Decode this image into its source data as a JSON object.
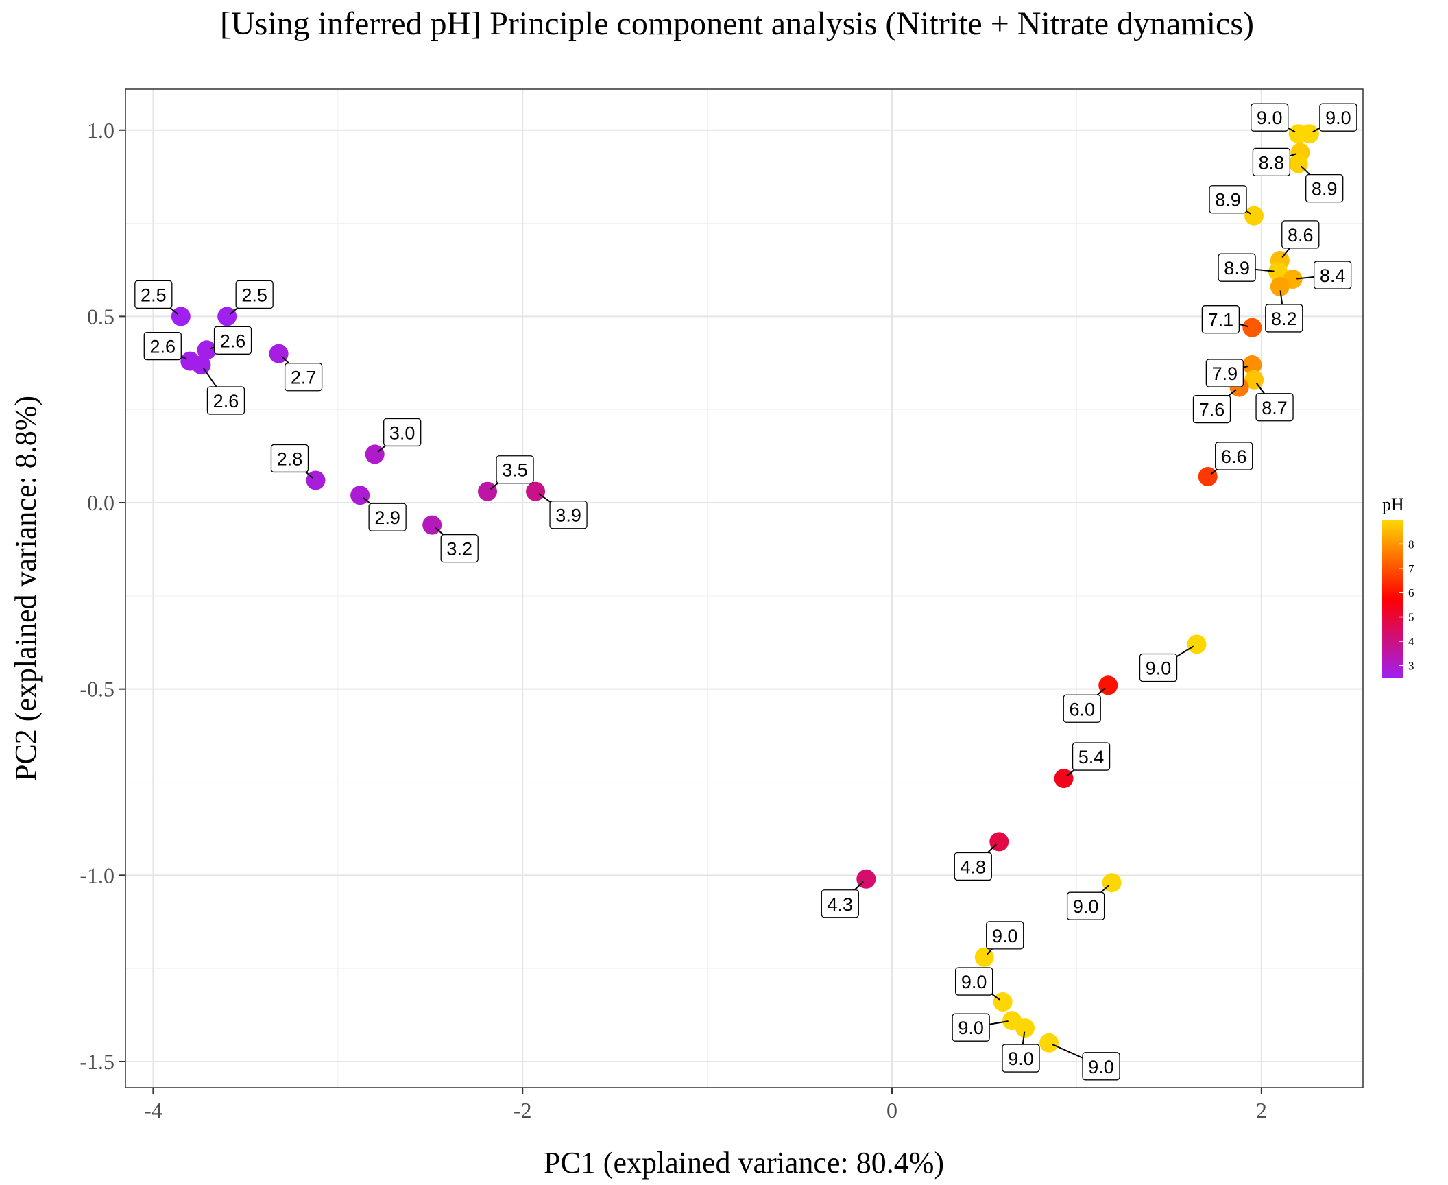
{
  "chart_data": {
    "type": "scatter",
    "title": "[Using inferred pH] Principle component analysis (Nitrite + Nitrate dynamics)",
    "xlabel": "PC1 (explained variance: 80.4%)",
    "ylabel": "PC2 (explained variance: 8.8%)",
    "xlim": [
      -4.15,
      2.55
    ],
    "ylim": [
      -1.57,
      1.11
    ],
    "x_ticks": [
      -4,
      -2,
      0,
      2
    ],
    "x_tick_labels": [
      "-4",
      "-2",
      "0",
      "2"
    ],
    "y_ticks": [
      1.0,
      0.5,
      0.0,
      -0.5,
      -1.0,
      -1.5
    ],
    "y_tick_labels": [
      "1.0",
      "0.5",
      "0.0",
      "-0.5",
      "-1.0",
      "-1.5"
    ],
    "grid": true,
    "legend": {
      "title": "pH",
      "placement": "right",
      "type": "colorbar",
      "range": [
        2.5,
        9.0
      ],
      "ticks": [
        3,
        4,
        5,
        6,
        7,
        8
      ],
      "tick_labels": [
        "3",
        "4",
        "5",
        "6",
        "7",
        "8"
      ],
      "colors": [
        "#a020f0",
        "#ff0000",
        "#ffd700"
      ]
    },
    "points": [
      {
        "x": 2.2,
        "y": 0.99,
        "ph": 9.0,
        "label": "9.0"
      },
      {
        "x": 2.26,
        "y": 0.99,
        "ph": 9.0,
        "label": "9.0"
      },
      {
        "x": 2.21,
        "y": 0.94,
        "ph": 8.8,
        "label": "8.8"
      },
      {
        "x": 2.2,
        "y": 0.91,
        "ph": 8.9,
        "label": "8.9"
      },
      {
        "x": 1.96,
        "y": 0.77,
        "ph": 8.9,
        "label": "8.9"
      },
      {
        "x": 2.1,
        "y": 0.65,
        "ph": 8.6,
        "label": "8.6"
      },
      {
        "x": 2.09,
        "y": 0.62,
        "ph": 8.9,
        "label": "8.9"
      },
      {
        "x": 2.17,
        "y": 0.6,
        "ph": 8.4,
        "label": "8.4"
      },
      {
        "x": 2.1,
        "y": 0.58,
        "ph": 8.2,
        "label": "8.2"
      },
      {
        "x": 1.95,
        "y": 0.47,
        "ph": 7.1,
        "label": "7.1"
      },
      {
        "x": 1.95,
        "y": 0.37,
        "ph": 7.9,
        "label": "7.9"
      },
      {
        "x": 1.96,
        "y": 0.33,
        "ph": 8.7,
        "label": "8.7"
      },
      {
        "x": 1.88,
        "y": 0.31,
        "ph": 7.6,
        "label": "7.6"
      },
      {
        "x": 1.71,
        "y": 0.07,
        "ph": 6.6,
        "label": "6.6"
      },
      {
        "x": 1.65,
        "y": -0.38,
        "ph": 9.0,
        "label": "9.0"
      },
      {
        "x": 1.17,
        "y": -0.49,
        "ph": 6.0,
        "label": "6.0"
      },
      {
        "x": 0.93,
        "y": -0.74,
        "ph": 5.4,
        "label": "5.4"
      },
      {
        "x": 0.58,
        "y": -0.91,
        "ph": 4.8,
        "label": "4.8"
      },
      {
        "x": -0.14,
        "y": -1.01,
        "ph": 4.3,
        "label": "4.3"
      },
      {
        "x": 1.19,
        "y": -1.02,
        "ph": 9.0,
        "label": "9.0"
      },
      {
        "x": 0.5,
        "y": -1.22,
        "ph": 9.0,
        "label": "9.0"
      },
      {
        "x": 0.6,
        "y": -1.34,
        "ph": 9.0,
        "label": "9.0"
      },
      {
        "x": 0.65,
        "y": -1.39,
        "ph": 9.0,
        "label": "9.0"
      },
      {
        "x": 0.72,
        "y": -1.41,
        "ph": 9.0,
        "label": "9.0"
      },
      {
        "x": 0.85,
        "y": -1.45,
        "ph": 9.0,
        "label": "9.0"
      },
      {
        "x": -3.85,
        "y": 0.5,
        "ph": 2.5,
        "label": "2.5"
      },
      {
        "x": -3.6,
        "y": 0.5,
        "ph": 2.5,
        "label": "2.5"
      },
      {
        "x": -3.8,
        "y": 0.38,
        "ph": 2.6,
        "label": "2.6"
      },
      {
        "x": -3.71,
        "y": 0.41,
        "ph": 2.6,
        "label": "2.6"
      },
      {
        "x": -3.74,
        "y": 0.37,
        "ph": 2.6,
        "label": "2.6"
      },
      {
        "x": -3.32,
        "y": 0.4,
        "ph": 2.7,
        "label": "2.7"
      },
      {
        "x": -3.12,
        "y": 0.06,
        "ph": 2.8,
        "label": "2.8"
      },
      {
        "x": -2.8,
        "y": 0.13,
        "ph": 3.0,
        "label": "3.0"
      },
      {
        "x": -2.88,
        "y": 0.02,
        "ph": 2.9,
        "label": "2.9"
      },
      {
        "x": -2.49,
        "y": -0.06,
        "ph": 3.2,
        "label": "3.2"
      },
      {
        "x": -2.19,
        "y": 0.03,
        "ph": 3.5,
        "label": "3.5"
      },
      {
        "x": -1.93,
        "y": 0.03,
        "ph": 3.9,
        "label": "3.9"
      }
    ]
  }
}
